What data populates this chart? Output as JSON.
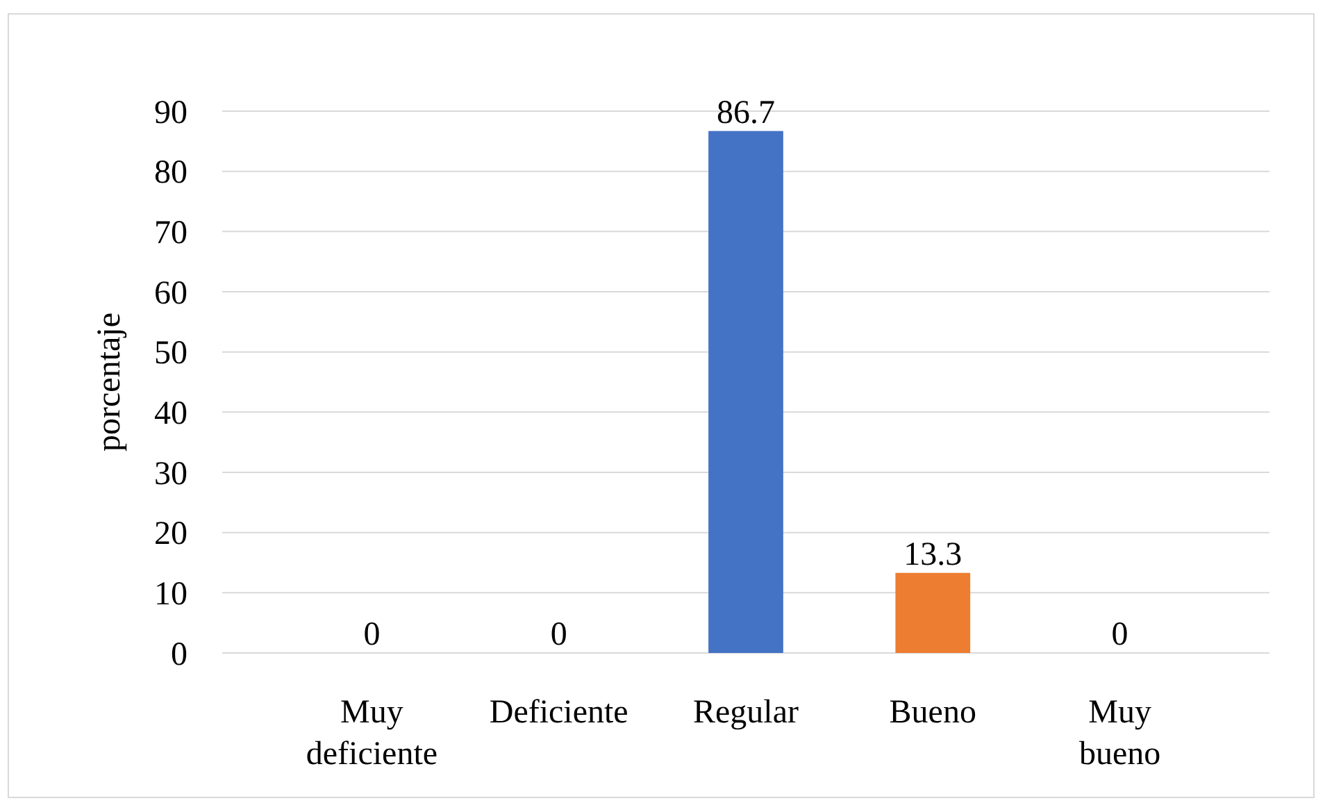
{
  "chart_data": {
    "type": "bar",
    "ylabel": "porcentaje",
    "categories": [
      "Muy deficiente",
      "Deficiente",
      "Regular",
      "Bueno",
      "Muy bueno"
    ],
    "values": [
      0,
      0,
      86.7,
      13.3,
      0
    ],
    "colors": [
      "#a00000",
      "#00843d",
      "#4472c4",
      "#ed7d31",
      "#7030a0"
    ],
    "ylim": [
      0,
      90
    ],
    "yticks": [
      0,
      10,
      20,
      30,
      40,
      50,
      60,
      70,
      80,
      90
    ],
    "grid": "y",
    "data_labels": true
  }
}
